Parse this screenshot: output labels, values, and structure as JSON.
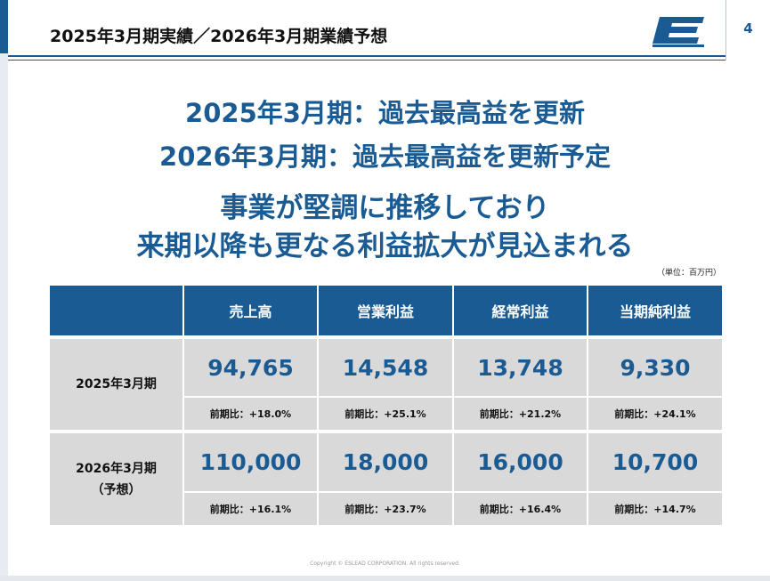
{
  "header": {
    "title": "2025年3月期実績／2026年3月期業績予想",
    "page_number": "4",
    "logo": "eslead-e-logo",
    "brand_color": "#1a5b94"
  },
  "headlines": [
    "2025年3月期：過去最高益を更新",
    "2026年3月期：過去最高益を更新予定",
    "事業が堅調に推移しており",
    "来期以降も更なる利益拡大が見込まれる"
  ],
  "unit_note": "（単位：百万円）",
  "table": {
    "columns": [
      "売上高",
      "営業利益",
      "経常利益",
      "当期純利益"
    ],
    "rows": [
      {
        "label": "2025年3月期",
        "sublabel": "",
        "values": [
          "94,765",
          "14,548",
          "13,748",
          "9,330"
        ],
        "changes": [
          "前期比：+18.0%",
          "前期比：+25.1%",
          "前期比：+21.2%",
          "前期比：+24.1%"
        ]
      },
      {
        "label": "2026年3月期",
        "sublabel": "（予想）",
        "values": [
          "110,000",
          "18,000",
          "16,000",
          "10,700"
        ],
        "changes": [
          "前期比：+16.1%",
          "前期比：+23.7%",
          "前期比：+16.4%",
          "前期比：+14.7%"
        ]
      }
    ]
  },
  "footer": {
    "copyright": "Copyright © ESLEAD CORPORATION. All rights reserved."
  }
}
